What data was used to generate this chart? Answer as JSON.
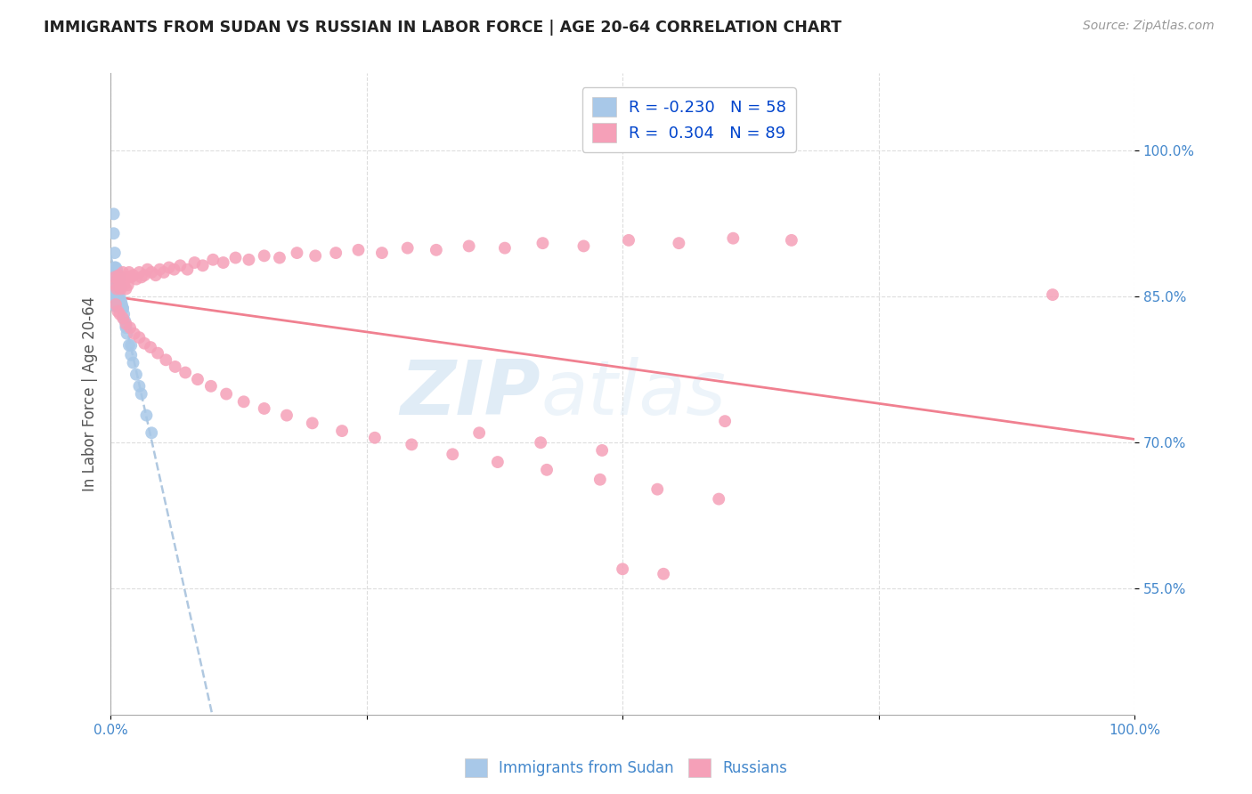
{
  "title": "IMMIGRANTS FROM SUDAN VS RUSSIAN IN LABOR FORCE | AGE 20-64 CORRELATION CHART",
  "source": "Source: ZipAtlas.com",
  "ylabel": "In Labor Force | Age 20-64",
  "ytick_labels": [
    "55.0%",
    "70.0%",
    "85.0%",
    "100.0%"
  ],
  "ytick_values": [
    0.55,
    0.7,
    0.85,
    1.0
  ],
  "xlim": [
    0.0,
    1.0
  ],
  "ylim": [
    0.42,
    1.08
  ],
  "legend_r_sudan": "-0.230",
  "legend_n_sudan": "58",
  "legend_r_russian": "0.304",
  "legend_n_russian": "89",
  "color_sudan": "#a8c8e8",
  "color_russian": "#f5a0b8",
  "color_trendline_sudan": "#b0c8e0",
  "color_trendline_russian": "#f08090",
  "watermark_zip": "ZIP",
  "watermark_atlas": "atlas",
  "sudan_x": [
    0.003,
    0.003,
    0.004,
    0.004,
    0.004,
    0.004,
    0.004,
    0.005,
    0.005,
    0.005,
    0.005,
    0.005,
    0.005,
    0.005,
    0.006,
    0.006,
    0.006,
    0.006,
    0.006,
    0.006,
    0.007,
    0.007,
    0.007,
    0.007,
    0.007,
    0.008,
    0.008,
    0.008,
    0.009,
    0.009,
    0.009,
    0.01,
    0.01,
    0.011,
    0.012,
    0.013,
    0.014,
    0.015,
    0.016,
    0.018,
    0.02,
    0.022,
    0.025,
    0.028,
    0.03,
    0.035,
    0.04,
    0.003,
    0.003,
    0.004,
    0.005,
    0.006,
    0.007,
    0.008,
    0.01,
    0.012,
    0.015,
    0.02
  ],
  "sudan_y": [
    0.855,
    0.87,
    0.85,
    0.86,
    0.865,
    0.87,
    0.88,
    0.84,
    0.85,
    0.855,
    0.86,
    0.865,
    0.87,
    0.875,
    0.84,
    0.848,
    0.855,
    0.862,
    0.87,
    0.878,
    0.845,
    0.852,
    0.858,
    0.865,
    0.872,
    0.848,
    0.858,
    0.868,
    0.85,
    0.86,
    0.87,
    0.845,
    0.86,
    0.842,
    0.838,
    0.832,
    0.825,
    0.818,
    0.812,
    0.8,
    0.79,
    0.782,
    0.77,
    0.758,
    0.75,
    0.728,
    0.71,
    0.935,
    0.915,
    0.895,
    0.88,
    0.872,
    0.865,
    0.858,
    0.845,
    0.838,
    0.82,
    0.8
  ],
  "russian_x": [
    0.004,
    0.005,
    0.006,
    0.007,
    0.008,
    0.009,
    0.01,
    0.011,
    0.012,
    0.013,
    0.014,
    0.015,
    0.016,
    0.017,
    0.018,
    0.02,
    0.022,
    0.025,
    0.028,
    0.03,
    0.033,
    0.036,
    0.04,
    0.044,
    0.048,
    0.052,
    0.057,
    0.062,
    0.068,
    0.075,
    0.082,
    0.09,
    0.1,
    0.11,
    0.122,
    0.135,
    0.15,
    0.165,
    0.182,
    0.2,
    0.22,
    0.242,
    0.265,
    0.29,
    0.318,
    0.35,
    0.385,
    0.422,
    0.462,
    0.506,
    0.555,
    0.608,
    0.665,
    0.005,
    0.007,
    0.009,
    0.012,
    0.015,
    0.019,
    0.023,
    0.028,
    0.033,
    0.039,
    0.046,
    0.054,
    0.063,
    0.073,
    0.085,
    0.098,
    0.113,
    0.13,
    0.15,
    0.172,
    0.197,
    0.226,
    0.258,
    0.294,
    0.334,
    0.378,
    0.426,
    0.478,
    0.534,
    0.594,
    0.92,
    0.36,
    0.42,
    0.48,
    0.54,
    0.6,
    0.5
  ],
  "russian_y": [
    0.87,
    0.862,
    0.858,
    0.868,
    0.872,
    0.865,
    0.858,
    0.868,
    0.875,
    0.862,
    0.868,
    0.858,
    0.87,
    0.862,
    0.875,
    0.87,
    0.872,
    0.868,
    0.875,
    0.87,
    0.872,
    0.878,
    0.875,
    0.872,
    0.878,
    0.875,
    0.88,
    0.878,
    0.882,
    0.878,
    0.885,
    0.882,
    0.888,
    0.885,
    0.89,
    0.888,
    0.892,
    0.89,
    0.895,
    0.892,
    0.895,
    0.898,
    0.895,
    0.9,
    0.898,
    0.902,
    0.9,
    0.905,
    0.902,
    0.908,
    0.905,
    0.91,
    0.908,
    0.842,
    0.835,
    0.832,
    0.828,
    0.822,
    0.818,
    0.812,
    0.808,
    0.802,
    0.798,
    0.792,
    0.785,
    0.778,
    0.772,
    0.765,
    0.758,
    0.75,
    0.742,
    0.735,
    0.728,
    0.72,
    0.712,
    0.705,
    0.698,
    0.688,
    0.68,
    0.672,
    0.662,
    0.652,
    0.642,
    0.852,
    0.71,
    0.7,
    0.692,
    0.565,
    0.722,
    0.57
  ]
}
